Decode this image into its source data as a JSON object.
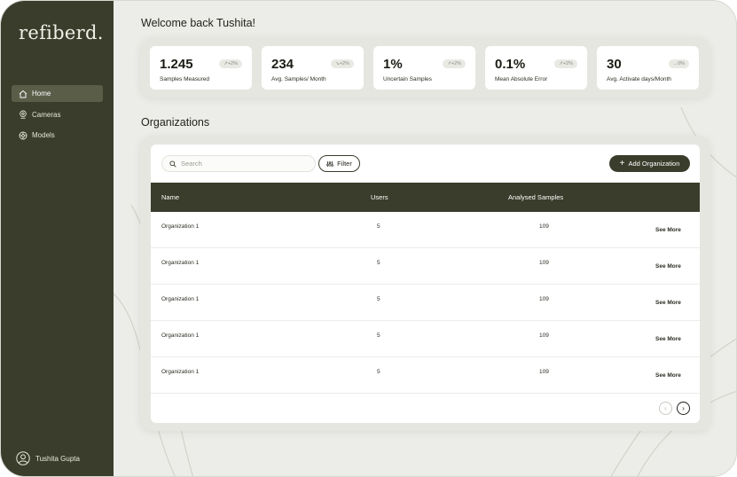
{
  "sidebar": {
    "logo": "refiberd.",
    "items": [
      {
        "label": "Home",
        "icon": "home-icon",
        "active": true
      },
      {
        "label": "Cameras",
        "icon": "camera-icon",
        "active": false
      },
      {
        "label": "Models",
        "icon": "model-icon",
        "active": false
      }
    ],
    "user_name": "Tushita Gupta"
  },
  "welcome": "Welcome back Tushita!",
  "stats": [
    {
      "value": "1.245",
      "label": "Samples Measured",
      "badge": "+2%"
    },
    {
      "value": "234",
      "label": "Avg. Samples/ Month",
      "badge": "+2%"
    },
    {
      "value": "1%",
      "label": "Uncertain Samples",
      "badge": "+2%"
    },
    {
      "value": "0.1%",
      "label": "Mean Absolute Error",
      "badge": "+2%"
    },
    {
      "value": "30",
      "label": "Avg. Activate days/Month",
      "badge": "0%"
    }
  ],
  "organizations": {
    "title": "Organizations",
    "search_placeholder": "Search",
    "filter_label": "Filter",
    "add_label": "Add Organization",
    "columns": [
      "Name",
      "Users",
      "Analysed Samples"
    ],
    "rows": [
      {
        "name": "Organization 1",
        "users": "5",
        "samples": "109",
        "action": "See More"
      },
      {
        "name": "Organization 1",
        "users": "5",
        "samples": "109",
        "action": "See More"
      },
      {
        "name": "Organization 1",
        "users": "5",
        "samples": "109",
        "action": "See More"
      },
      {
        "name": "Organization 1",
        "users": "5",
        "samples": "109",
        "action": "See More"
      },
      {
        "name": "Organization 1",
        "users": "5",
        "samples": "109",
        "action": "See More"
      }
    ],
    "pager_prev": "‹",
    "pager_next": "›"
  },
  "colors": {
    "accent": "#3a3d2b",
    "background": "#ecece8"
  }
}
